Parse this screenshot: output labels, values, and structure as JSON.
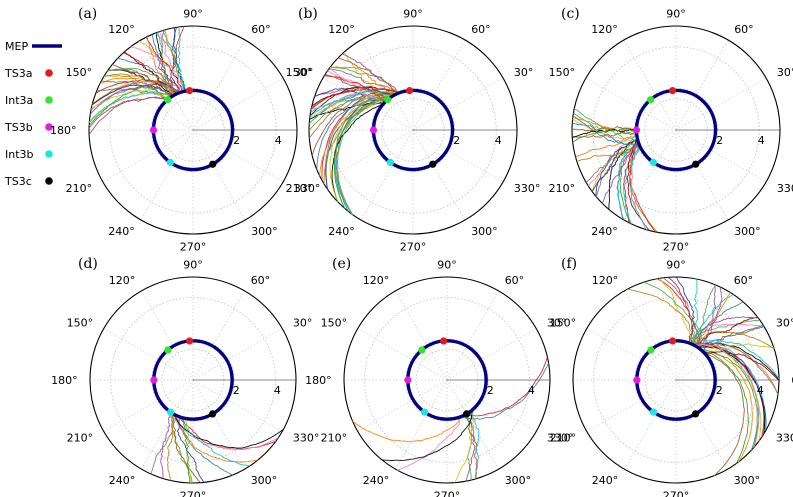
{
  "legend": [
    {
      "label": "MEP",
      "color": "#000080",
      "marker": "line"
    },
    {
      "label": "TS3a",
      "color": "#e41a1c",
      "marker": "dot"
    },
    {
      "label": "Int3a",
      "color": "#2ee62e",
      "marker": "dot"
    },
    {
      "label": "TS3b",
      "color": "#e619e6",
      "marker": "dot"
    },
    {
      "label": "Int3b",
      "color": "#19e6e6",
      "marker": "dot"
    },
    {
      "label": "TS3c",
      "color": "#000000",
      "marker": "dot"
    }
  ],
  "trajectory_colors": [
    "#e41a1c",
    "#377eb8",
    "#4daf4a",
    "#984ea3",
    "#ff7f00",
    "#d4c21a",
    "#a65628",
    "#f781bf",
    "#000000",
    "#17becf",
    "#7a7a7a",
    "#2c3e8c",
    "#b8860b",
    "#2ca02c",
    "#8b0000",
    "#00ced1"
  ],
  "chart_data": [
    {
      "panel": "(a)",
      "type": "polar",
      "r_ticks": [
        "2",
        "4"
      ],
      "rlim": [
        0,
        5
      ],
      "theta_ticks": [
        "0°",
        "30°",
        "60°",
        "90°",
        "120°",
        "150°",
        "180°",
        "210°",
        "240°",
        "270°",
        "300°",
        "330°"
      ],
      "shown_theta_labels": [
        "30°",
        "60°",
        "90°",
        "120°",
        "150°",
        "180°",
        "210°",
        "240°",
        "270°",
        "300°",
        "330°"
      ],
      "mep_radius": 1.9,
      "stationary_points": {
        "TS3a": {
          "theta_deg": 95,
          "r": 1.9
        },
        "Int3a": {
          "theta_deg": 130,
          "r": 1.9
        },
        "TS3b": {
          "theta_deg": 180,
          "r": 1.9
        },
        "Int3b": {
          "theta_deg": 235,
          "r": 1.9
        },
        "TS3c": {
          "theta_deg": 300,
          "r": 1.9
        }
      },
      "trajectories": {
        "count": 40,
        "exit_theta_deg": [
          95,
          185
        ],
        "start_theta_deg": 115
      }
    },
    {
      "panel": "(b)",
      "type": "polar",
      "r_ticks": [
        "2",
        "4"
      ],
      "rlim": [
        0,
        5
      ],
      "theta_ticks": [
        "0°",
        "30°",
        "60°",
        "90°",
        "120°",
        "150°",
        "180°",
        "210°",
        "240°",
        "270°",
        "300°",
        "330°"
      ],
      "shown_theta_labels": [
        "30°",
        "60°",
        "90°",
        "120°",
        "150°",
        "210°",
        "240°",
        "270°",
        "300°",
        "330°"
      ],
      "mep_radius": 1.9,
      "stationary_points": {
        "TS3a": {
          "theta_deg": 95,
          "r": 1.9
        },
        "Int3a": {
          "theta_deg": 130,
          "r": 1.9
        },
        "TS3b": {
          "theta_deg": 180,
          "r": 1.9
        },
        "Int3b": {
          "theta_deg": 235,
          "r": 1.9
        },
        "TS3c": {
          "theta_deg": 300,
          "r": 1.9
        }
      },
      "trajectories": {
        "count": 40,
        "exit_theta_deg": [
          130,
          235
        ],
        "start_theta_deg": 125
      }
    },
    {
      "panel": "(c)",
      "type": "polar",
      "r_ticks": [
        "2",
        "4"
      ],
      "rlim": [
        0,
        5
      ],
      "theta_ticks": [
        "0°",
        "30°",
        "60°",
        "90°",
        "120°",
        "150°",
        "180°",
        "210°",
        "240°",
        "270°",
        "300°",
        "330°"
      ],
      "shown_theta_labels": [
        "0°",
        "30°",
        "60°",
        "90°",
        "120°",
        "150°",
        "210°",
        "240°",
        "270°",
        "300°",
        "330°"
      ],
      "mep_radius": 1.9,
      "stationary_points": {
        "TS3a": {
          "theta_deg": 95,
          "r": 1.9
        },
        "Int3a": {
          "theta_deg": 130,
          "r": 1.9
        },
        "TS3b": {
          "theta_deg": 180,
          "r": 1.9
        },
        "Int3b": {
          "theta_deg": 235,
          "r": 1.9
        },
        "TS3c": {
          "theta_deg": 300,
          "r": 1.9
        }
      },
      "trajectories": {
        "count": 30,
        "exit_theta_deg": [
          160,
          265
        ],
        "start_theta_deg": 190
      }
    },
    {
      "panel": "(d)",
      "type": "polar",
      "r_ticks": [
        "2",
        "4"
      ],
      "rlim": [
        0,
        5
      ],
      "theta_ticks": [
        "0°",
        "30°",
        "60°",
        "90°",
        "120°",
        "150°",
        "180°",
        "210°",
        "240°",
        "270°",
        "300°",
        "330°"
      ],
      "shown_theta_labels": [
        "30°",
        "60°",
        "90°",
        "120°",
        "150°",
        "180°",
        "210°",
        "240°",
        "270°",
        "300°",
        "330°"
      ],
      "mep_radius": 1.9,
      "stationary_points": {
        "TS3a": {
          "theta_deg": 95,
          "r": 1.9
        },
        "Int3a": {
          "theta_deg": 130,
          "r": 1.9
        },
        "TS3b": {
          "theta_deg": 180,
          "r": 1.9
        },
        "Int3b": {
          "theta_deg": 235,
          "r": 1.9
        },
        "TS3c": {
          "theta_deg": 300,
          "r": 1.9
        }
      },
      "trajectories": {
        "count": 14,
        "exit_theta_deg": [
          245,
          340
        ],
        "start_theta_deg": 245
      }
    },
    {
      "panel": "(e)",
      "type": "polar",
      "r_ticks": [
        "2",
        "4"
      ],
      "rlim": [
        0,
        5
      ],
      "theta_ticks": [
        "0°",
        "30°",
        "60°",
        "90°",
        "120°",
        "150°",
        "180°",
        "210°",
        "240°",
        "270°",
        "300°",
        "330°"
      ],
      "shown_theta_labels": [
        "30°",
        "60°",
        "90°",
        "120°",
        "150°",
        "180°",
        "210°",
        "240°",
        "270°",
        "300°",
        "330°"
      ],
      "mep_radius": 1.9,
      "stationary_points": {
        "TS3a": {
          "theta_deg": 95,
          "r": 1.9
        },
        "Int3a": {
          "theta_deg": 130,
          "r": 1.9
        },
        "TS3b": {
          "theta_deg": 180,
          "r": 1.9
        },
        "Int3b": {
          "theta_deg": 235,
          "r": 1.9
        },
        "TS3c": {
          "theta_deg": 300,
          "r": 1.9
        }
      },
      "trajectories": {
        "count": 10,
        "exit_theta_deg": [
          200,
          40
        ],
        "start_theta_deg": 300
      }
    },
    {
      "panel": "(f)",
      "type": "polar",
      "r_ticks": [
        "2",
        "4"
      ],
      "rlim": [
        0,
        5
      ],
      "theta_ticks": [
        "0°",
        "30°",
        "60°",
        "90°",
        "120°",
        "150°",
        "180°",
        "210°",
        "240°",
        "270°",
        "300°",
        "330°"
      ],
      "shown_theta_labels": [
        "0°",
        "30°",
        "60°",
        "90°",
        "120°",
        "150°",
        "210°",
        "240°",
        "270°",
        "300°",
        "330°"
      ],
      "mep_radius": 1.9,
      "stationary_points": {
        "TS3a": {
          "theta_deg": 95,
          "r": 1.9
        },
        "Int3a": {
          "theta_deg": 130,
          "r": 1.9
        },
        "TS3b": {
          "theta_deg": 180,
          "r": 1.9
        },
        "Int3b": {
          "theta_deg": 235,
          "r": 1.9
        },
        "TS3c": {
          "theta_deg": 300,
          "r": 1.9
        }
      },
      "trajectories": {
        "count": 38,
        "exit_theta_deg": [
          -80,
          120
        ],
        "start_theta_deg": 60
      }
    }
  ]
}
